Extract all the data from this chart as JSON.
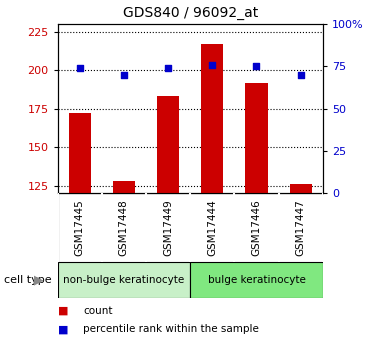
{
  "title": "GDS840 / 96092_at",
  "samples": [
    "GSM17445",
    "GSM17448",
    "GSM17449",
    "GSM17444",
    "GSM17446",
    "GSM17447"
  ],
  "count_values": [
    172,
    128,
    183,
    217,
    192,
    126
  ],
  "percentile_values": [
    74,
    70,
    74,
    76,
    75,
    70
  ],
  "ylim_left": [
    120,
    230
  ],
  "ylim_right": [
    0,
    100
  ],
  "yticks_left": [
    125,
    150,
    175,
    200,
    225
  ],
  "yticks_right": [
    0,
    25,
    50,
    75,
    100
  ],
  "ytick_labels_right": [
    "0",
    "25",
    "50",
    "75",
    "100%"
  ],
  "bar_color": "#cc0000",
  "dot_color": "#0000cc",
  "grid_color": "#000000",
  "bar_width": 0.5,
  "groups": [
    {
      "label": "non-bulge keratinocyte",
      "indices": [
        0,
        1,
        2
      ],
      "color": "#c8f0c8"
    },
    {
      "label": "bulge keratinocyte",
      "indices": [
        3,
        4,
        5
      ],
      "color": "#80e880"
    }
  ],
  "cell_type_label": "cell type",
  "legend_items": [
    {
      "color": "#cc0000",
      "label": "count"
    },
    {
      "color": "#0000cc",
      "label": "percentile rank within the sample"
    }
  ],
  "background_color": "#ffffff",
  "plot_bg_color": "#ffffff",
  "tick_label_color_left": "#cc0000",
  "tick_label_color_right": "#0000cc",
  "sample_box_color": "#cccccc",
  "title_fontsize": 10,
  "tick_fontsize": 8,
  "label_fontsize": 8
}
